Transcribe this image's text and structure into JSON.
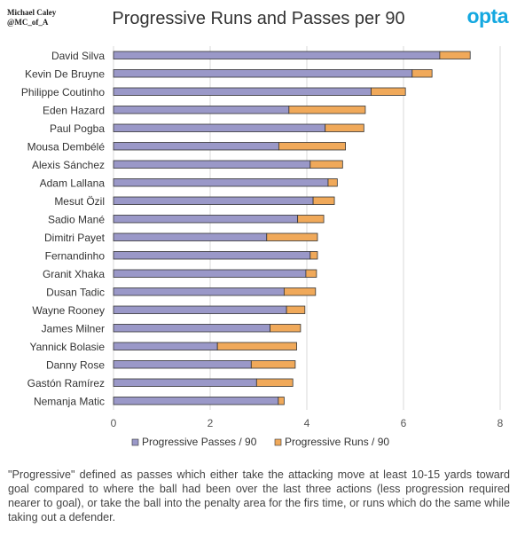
{
  "credit": {
    "line1": "Michael Caley",
    "line2": "@MC_of_A"
  },
  "logo": "opta",
  "footnote": "\"Progressive\" defined as passes which either take the attacking move at least 10-15 yards toward goal compared to where the ball had been over the last three actions (less progression required nearer to goal), or take the ball into the penalty area for the firs time, or runs which do the same while taking out a defender.",
  "colors": {
    "passes": "#9a98c8",
    "runs": "#f0a95a",
    "outline": "#333333",
    "grid": "#d9d9d9"
  },
  "chart_data": {
    "type": "bar",
    "orientation": "horizontal",
    "stacked": true,
    "title": "Progressive Runs and Passes per 90",
    "categories": [
      "David Silva",
      "Kevin De Bruyne",
      "Philippe Coutinho",
      "Eden Hazard",
      "Paul Pogba",
      "Mousa Dembélé",
      "Alexis Sánchez",
      "Adam Lallana",
      "Mesut Özil",
      "Sadio Mané",
      "Dimitri Payet",
      "Fernandinho",
      "Granit Xhaka",
      "Dusan Tadic",
      "Wayne Rooney",
      "James Milner",
      "Yannick Bolasie",
      "Danny Rose",
      "Gastón Ramírez",
      "Nemanja Matic"
    ],
    "series": [
      {
        "name": "Progressive Passes / 90",
        "values": [
          6.75,
          6.18,
          5.33,
          3.63,
          4.38,
          3.42,
          4.07,
          4.44,
          4.13,
          3.81,
          3.17,
          4.07,
          3.98,
          3.53,
          3.58,
          3.24,
          2.15,
          2.85,
          2.96,
          3.41
        ]
      },
      {
        "name": "Progressive Runs / 90",
        "values": [
          0.63,
          0.41,
          0.71,
          1.58,
          0.8,
          1.38,
          0.67,
          0.19,
          0.44,
          0.54,
          1.05,
          0.15,
          0.22,
          0.65,
          0.38,
          0.63,
          1.64,
          0.91,
          0.75,
          0.12
        ]
      }
    ],
    "xlim": [
      0,
      8
    ],
    "xticks": [
      0,
      2,
      4,
      6,
      8
    ],
    "grid": true,
    "legend": "bottom"
  }
}
